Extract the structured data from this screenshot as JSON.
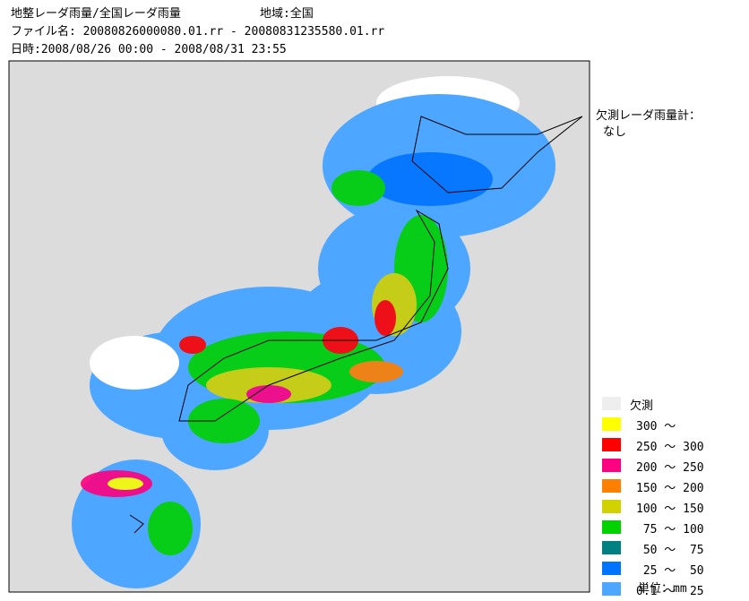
{
  "header": {
    "title": "地整レーダ雨量/全国レーダ雨量",
    "region": "地域:全国",
    "file": "ファイル名: 20080826000080.01.rr - 20080831235580.01.rr",
    "period": "日時:2008/08/26 00:00 - 2008/08/31 23:55"
  },
  "missing_radar": {
    "label": "欠測レーダ雨量計：",
    "value": "なし"
  },
  "legend": {
    "items": [
      {
        "label": "欠測",
        "color": "#eeeeee"
      },
      {
        "label": "300 ～",
        "color": "#ffff00"
      },
      {
        "label": "250 ～ 300",
        "color": "#ff0000"
      },
      {
        "label": "200 ～ 250",
        "color": "#ff0080"
      },
      {
        "label": "150 ～ 200",
        "color": "#ff8000"
      },
      {
        "label": "100 ～ 150",
        "color": "#d2d200"
      },
      {
        "label": " 75 ～ 100",
        "color": "#00d200"
      },
      {
        "label": " 50 ～  75",
        "color": "#008080"
      },
      {
        "label": " 25 ～  50",
        "color": "#0073ff"
      },
      {
        "label": "0.1 ～  25",
        "color": "#4da6ff"
      }
    ],
    "unit": "単位：mm"
  }
}
